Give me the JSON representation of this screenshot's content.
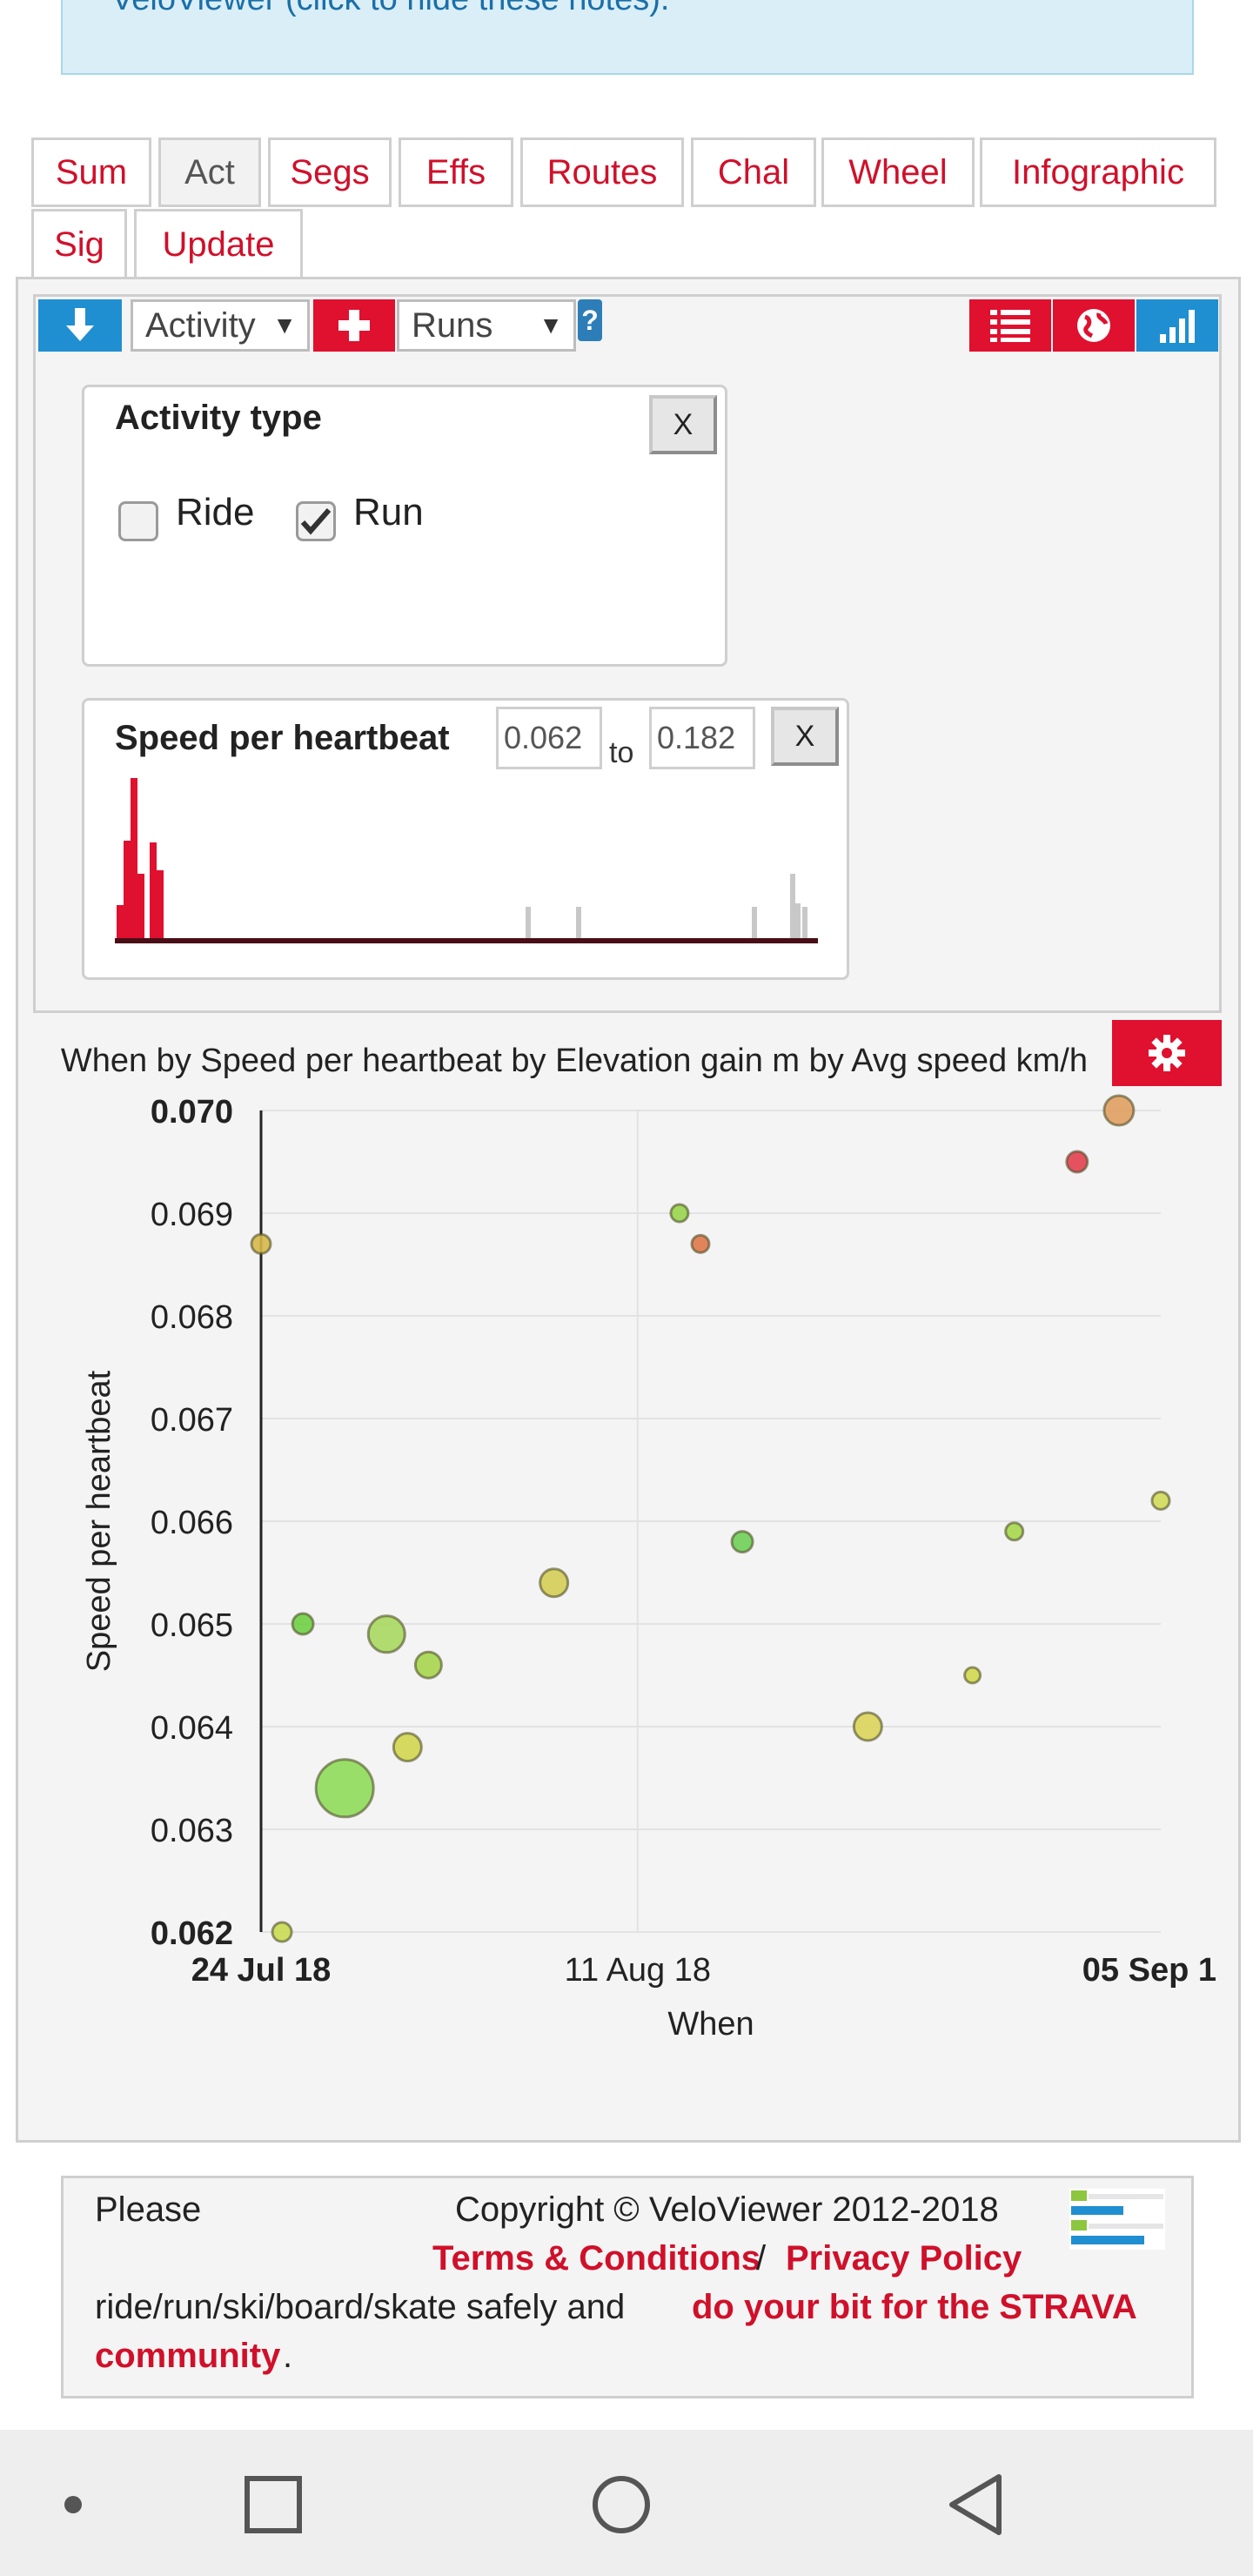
{
  "note": {
    "text": "VeloViewer (click to hide these notes)."
  },
  "tabs": [
    {
      "label": "Sum"
    },
    {
      "label": "Act",
      "active": true
    },
    {
      "label": "Segs"
    },
    {
      "label": "Effs"
    },
    {
      "label": "Routes"
    },
    {
      "label": "Chal"
    },
    {
      "label": "Wheel"
    },
    {
      "label": "Infographic"
    },
    {
      "label": "Sig"
    },
    {
      "label": "Update"
    }
  ],
  "toolbar": {
    "download_icon": "download-arrow-icon",
    "activity_select": "Activity",
    "add_icon": "plus-icon",
    "runs_select": "Runs",
    "help": "?",
    "list_icon": "list-icon",
    "globe_icon": "globe-icon",
    "chart_icon": "signal-bars-icon"
  },
  "activity_type": {
    "title": "Activity type",
    "close": "X",
    "options": [
      {
        "label": "Ride",
        "checked": false
      },
      {
        "label": "Run",
        "checked": true
      }
    ]
  },
  "speed_filter": {
    "title": "Speed per heartbeat",
    "min": "0.062",
    "to": "to",
    "max": "0.182",
    "close": "X"
  },
  "chart_header": {
    "title": "When by Speed per heartbeat by Elevation gain m by Avg speed km/h",
    "settings_icon": "gear-icon"
  },
  "chart_data": {
    "type": "scatter",
    "xlabel": "When",
    "ylabel": "Speed per heartbeat",
    "x_ticks": [
      "24 Jul 18",
      "11 Aug 18",
      "05 Sep 1"
    ],
    "y_ticks": [
      "0.062",
      "0.063",
      "0.064",
      "0.065",
      "0.066",
      "0.067",
      "0.068",
      "0.069",
      "0.070"
    ],
    "ylim": [
      0.062,
      0.07
    ],
    "points": [
      {
        "x": "24 Jul 18",
        "y": 0.0687,
        "size": 1.0,
        "color": "#d6b84a"
      },
      {
        "x": "25 Jul 18",
        "y": 0.062,
        "size": 1.0,
        "color": "#c9dc52"
      },
      {
        "x": "26 Jul 18",
        "y": 0.065,
        "size": 1.1,
        "color": "#6fcf45"
      },
      {
        "x": "28 Jul 18",
        "y": 0.0634,
        "size": 3.2,
        "color": "#8fdc5a"
      },
      {
        "x": "30 Jul 18",
        "y": 0.0649,
        "size": 2.0,
        "color": "#a8d860"
      },
      {
        "x": "31 Jul 18",
        "y": 0.0638,
        "size": 1.5,
        "color": "#d2d64f"
      },
      {
        "x": "1 Aug 18",
        "y": 0.0646,
        "size": 1.4,
        "color": "#a6d64e"
      },
      {
        "x": "7 Aug 18",
        "y": 0.0654,
        "size": 1.5,
        "color": "#d5cd55"
      },
      {
        "x": "13 Aug 18",
        "y": 0.069,
        "size": 0.9,
        "color": "#98d54c"
      },
      {
        "x": "14 Aug 18",
        "y": 0.0687,
        "size": 0.9,
        "color": "#e0784a"
      },
      {
        "x": "16 Aug 18",
        "y": 0.0658,
        "size": 1.1,
        "color": "#6fd056"
      },
      {
        "x": "22 Aug 18",
        "y": 0.064,
        "size": 1.5,
        "color": "#dcd45a"
      },
      {
        "x": "27 Aug 18",
        "y": 0.0645,
        "size": 0.8,
        "color": "#d0d84e"
      },
      {
        "x": "29 Aug 18",
        "y": 0.0659,
        "size": 0.9,
        "color": "#a6d84e"
      },
      {
        "x": "01 Sep 18",
        "y": 0.0695,
        "size": 1.1,
        "color": "#e2404f"
      },
      {
        "x": "03 Sep 18",
        "y": 0.07,
        "size": 1.6,
        "color": "#e0a060"
      },
      {
        "x": "05 Sep 18",
        "y": 0.0662,
        "size": 0.9,
        "color": "#d2dc5a"
      }
    ]
  },
  "footer": {
    "please": "Please",
    "copyright": "Copyright © VeloViewer 2012-2018",
    "terms": "Terms & Conditions",
    "slash": "/",
    "privacy": "Privacy Policy",
    "line2_plain": "ride/run/ski/board/skate safely and",
    "line2_red": "do your bit for the STRAVA",
    "line3_red": "community",
    "line3_dot": "."
  },
  "navbar": {
    "dot_icon": "dot-icon",
    "recents_icon": "square-recents-icon",
    "home_icon": "circle-home-icon",
    "back_icon": "triangle-back-icon"
  },
  "colors": {
    "accent_red": "#e0102f",
    "link_red": "#d0102a",
    "toolbar_blue": "#1f8fd1"
  }
}
